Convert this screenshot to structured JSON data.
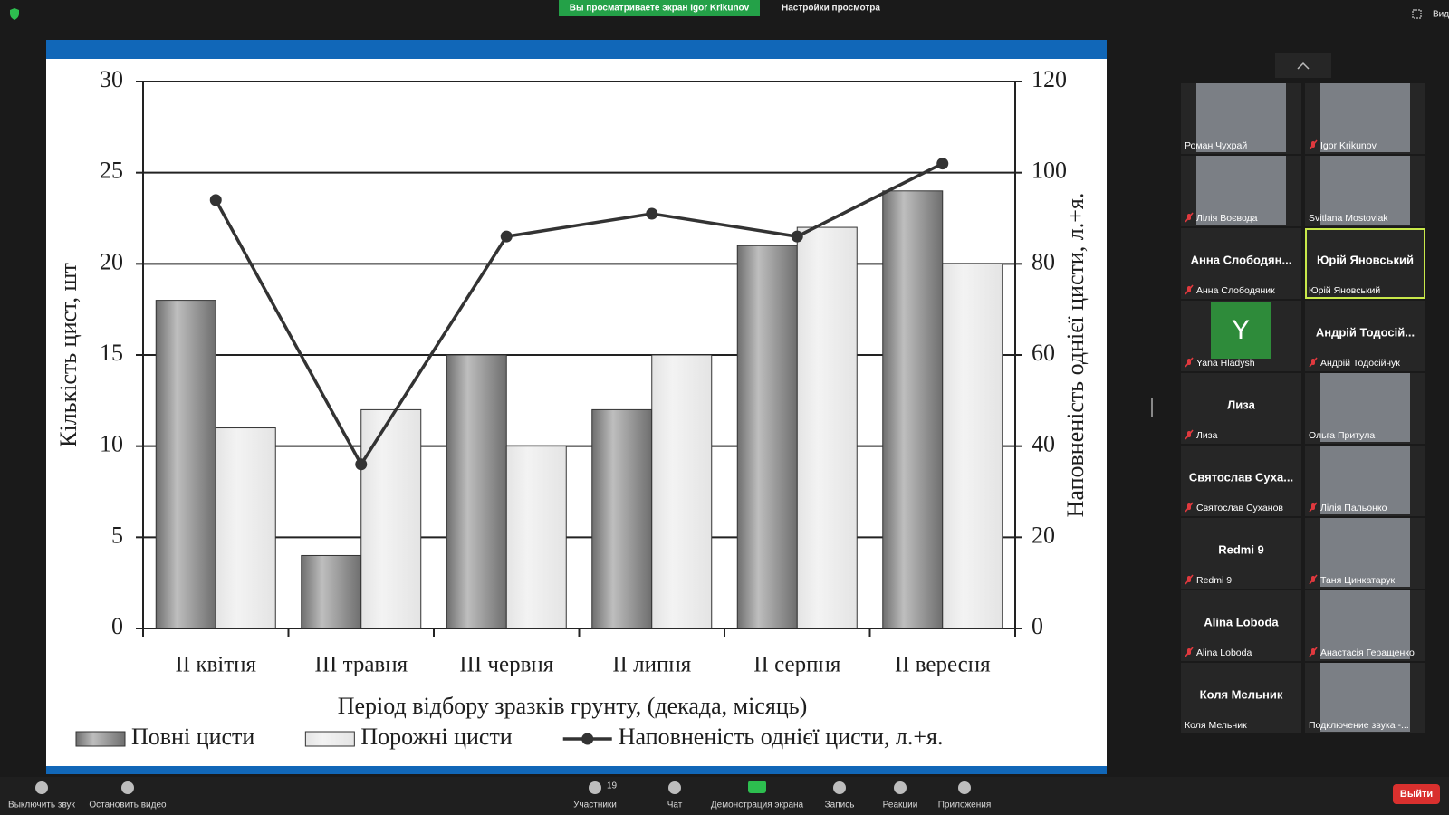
{
  "banner": {
    "viewing": "Вы просматриваете экран Igor Krikunov",
    "settings": "Настройки просмотра"
  },
  "view": "Вид",
  "chart_data": {
    "type": "bar",
    "categories": [
      "II квітня",
      "III травня",
      "III червня",
      "II липня",
      "II серпня",
      "II вересня"
    ],
    "series": [
      {
        "name": "Повні цисти",
        "color": "#6e6e6e",
        "values": [
          18,
          4,
          15,
          12,
          21,
          24
        ]
      },
      {
        "name": "Порожні цисти",
        "color": "#e4e4e4",
        "values": [
          11,
          12,
          10,
          15,
          22,
          20
        ]
      },
      {
        "name": "Наповненість однієї цисти, л.+я.",
        "color": "#333333",
        "axis": "y2",
        "type": "line",
        "values": [
          94,
          36,
          86,
          91,
          86,
          102
        ]
      }
    ],
    "ylim": [
      0,
      30
    ],
    "yticks": [
      0,
      5,
      10,
      15,
      20,
      25,
      30
    ],
    "y2lim": [
      0,
      120
    ],
    "y2ticks": [
      0,
      20,
      40,
      60,
      80,
      100,
      120
    ],
    "ylabel": "Кількість цист, шт",
    "y2label": "Наповненість однієї цисти, л.+я.",
    "xlabel": "Період відбору зразків грунту, (декада, місяць)",
    "grid": true,
    "legend": "bottom"
  },
  "participants": [
    {
      "label": "Роман Чухрай",
      "video": true,
      "muted": false
    },
    {
      "label": "Igor Krikunov",
      "video": true,
      "muted": true
    },
    {
      "label": "Лілія Воєвода",
      "video": true,
      "muted": true
    },
    {
      "label": "Svitlana Mostoviak",
      "video": true,
      "muted": false
    },
    {
      "name": "Анна  Слободян...",
      "label": "Анна Слободяник",
      "muted": true
    },
    {
      "name": "Юрій Яновський",
      "label": "Юрій Яновський",
      "muted": false,
      "active": true
    },
    {
      "avatar": "Y",
      "label": "Yana Hladysh",
      "muted": true
    },
    {
      "name": "Андрій Тодосій...",
      "label": "Андрій Тодосійчук",
      "muted": true
    },
    {
      "name": "Лиза",
      "label": "Лиза",
      "muted": true
    },
    {
      "label": "Ольга Притула",
      "video": true,
      "muted": false
    },
    {
      "name": "Святослав  Суха...",
      "label": "Святослав Суханов",
      "muted": true
    },
    {
      "label": "Лілія Пальонко",
      "video": true,
      "muted": true
    },
    {
      "name": "Redmi 9",
      "label": "Redmi 9",
      "muted": true
    },
    {
      "label": "Таня Цинкатарук",
      "video": true,
      "muted": true
    },
    {
      "name": "Alina Loboda",
      "label": "Alina Loboda",
      "muted": true
    },
    {
      "label": "Анастасія Геращенко",
      "video": true,
      "muted": true
    },
    {
      "name": "Коля Мельник",
      "label": "Коля Мельник",
      "muted": false
    },
    {
      "label": "Подключение звука -...",
      "video": true,
      "muted": false
    }
  ],
  "toolbar": {
    "mute": "Выключить звук",
    "video": "Остановить видео",
    "participants": "Участники",
    "participants_count": 19,
    "chat": "Чат",
    "share": "Демонстрация экрана",
    "record": "Запись",
    "reactions": "Реакции",
    "apps": "Приложения",
    "leave": "Выйти"
  }
}
